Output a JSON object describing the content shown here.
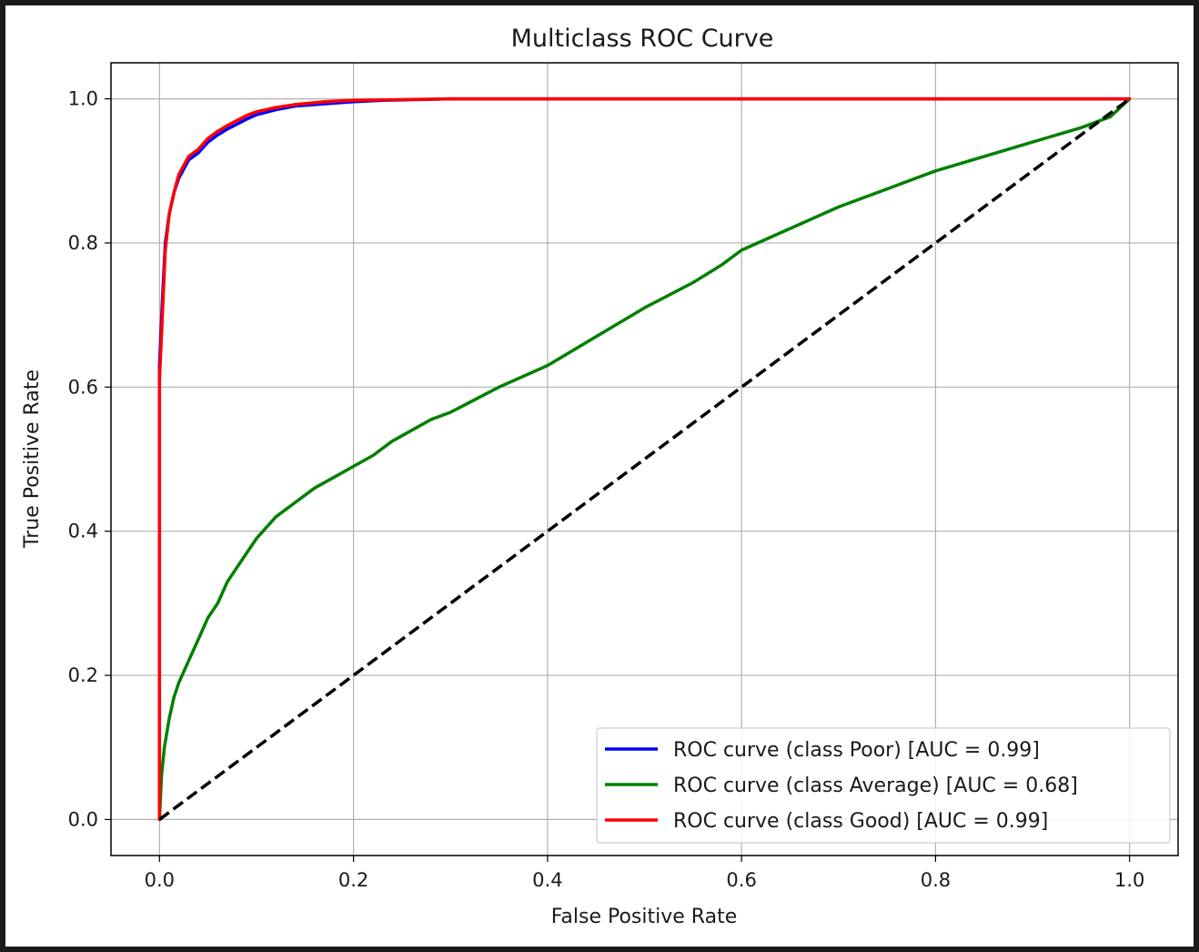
{
  "chart_data": {
    "type": "line",
    "title": "Multiclass ROC Curve",
    "xlabel": "False Positive Rate",
    "ylabel": "True Positive Rate",
    "xlim": [
      -0.05,
      1.05
    ],
    "ylim": [
      -0.05,
      1.05
    ],
    "xticks": [
      0.0,
      0.2,
      0.4,
      0.6,
      0.8,
      1.0
    ],
    "yticks": [
      0.0,
      0.2,
      0.4,
      0.6,
      0.8,
      1.0
    ],
    "xtick_labels": [
      "0.0",
      "0.2",
      "0.4",
      "0.6",
      "0.8",
      "1.0"
    ],
    "ytick_labels": [
      "0.0",
      "0.2",
      "0.4",
      "0.6",
      "0.8",
      "1.0"
    ],
    "grid": true,
    "legend_position": "lower-right",
    "series": [
      {
        "name": "ROC curve (class Poor) [AUC = 0.99]",
        "color": "#0000ff",
        "x": [
          0,
          0,
          0.003,
          0.006,
          0.01,
          0.015,
          0.02,
          0.03,
          0.04,
          0.05,
          0.06,
          0.07,
          0.08,
          0.09,
          0.1,
          0.12,
          0.14,
          0.17,
          0.2,
          0.23,
          0.3,
          0.5,
          0.7,
          0.9,
          1.0
        ],
        "y": [
          0,
          0.63,
          0.72,
          0.8,
          0.84,
          0.87,
          0.89,
          0.915,
          0.925,
          0.94,
          0.95,
          0.958,
          0.965,
          0.972,
          0.978,
          0.985,
          0.99,
          0.993,
          0.996,
          0.998,
          1.0,
          1.0,
          1.0,
          1.0,
          1.0
        ]
      },
      {
        "name": "ROC curve (class Average) [AUC = 0.68]",
        "color": "#008000",
        "x": [
          0,
          0.002,
          0.005,
          0.01,
          0.015,
          0.02,
          0.03,
          0.04,
          0.05,
          0.06,
          0.07,
          0.08,
          0.09,
          0.1,
          0.12,
          0.14,
          0.16,
          0.18,
          0.2,
          0.22,
          0.24,
          0.26,
          0.28,
          0.3,
          0.35,
          0.4,
          0.45,
          0.5,
          0.55,
          0.58,
          0.6,
          0.65,
          0.7,
          0.75,
          0.8,
          0.85,
          0.9,
          0.95,
          0.98,
          1.0
        ],
        "y": [
          0,
          0.06,
          0.1,
          0.14,
          0.17,
          0.19,
          0.22,
          0.25,
          0.28,
          0.3,
          0.33,
          0.35,
          0.37,
          0.39,
          0.42,
          0.44,
          0.46,
          0.475,
          0.49,
          0.505,
          0.525,
          0.54,
          0.555,
          0.565,
          0.6,
          0.63,
          0.67,
          0.71,
          0.745,
          0.77,
          0.79,
          0.82,
          0.85,
          0.875,
          0.9,
          0.92,
          0.94,
          0.96,
          0.975,
          1.0
        ]
      },
      {
        "name": "ROC curve (class Good) [AUC = 0.99]",
        "color": "#ff0000",
        "x": [
          0,
          0,
          0.003,
          0.006,
          0.01,
          0.015,
          0.02,
          0.03,
          0.04,
          0.05,
          0.06,
          0.07,
          0.08,
          0.09,
          0.1,
          0.12,
          0.14,
          0.17,
          0.2,
          0.3,
          0.5,
          0.7,
          0.9,
          1.0
        ],
        "y": [
          0,
          0.61,
          0.7,
          0.79,
          0.84,
          0.87,
          0.895,
          0.92,
          0.93,
          0.945,
          0.955,
          0.963,
          0.97,
          0.977,
          0.982,
          0.988,
          0.992,
          0.996,
          0.998,
          1.0,
          1.0,
          1.0,
          1.0,
          1.0
        ]
      }
    ],
    "reference_line": {
      "color": "#000000",
      "style": "dashed",
      "x": [
        0,
        1
      ],
      "y": [
        0,
        1
      ]
    }
  }
}
